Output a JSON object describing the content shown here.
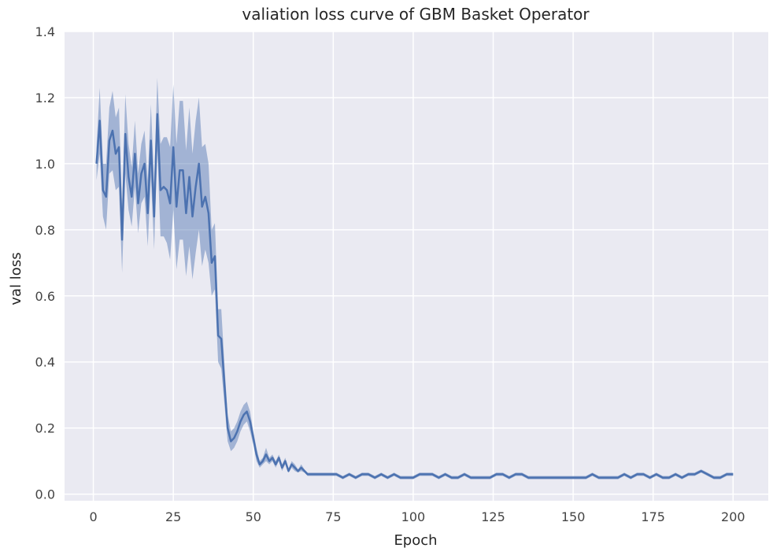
{
  "chart_data": {
    "type": "line",
    "title": "valiation loss curve of GBM Basket Operator",
    "xlabel": "Epoch",
    "ylabel": "val loss",
    "xlim": [
      -9,
      211
    ],
    "ylim": [
      -0.02,
      1.4
    ],
    "x_ticks": [
      0,
      25,
      50,
      75,
      100,
      125,
      150,
      175,
      200
    ],
    "y_ticks": [
      0.0,
      0.2,
      0.4,
      0.6,
      0.8,
      1.0,
      1.2,
      1.4
    ],
    "grid": true,
    "colors": {
      "background": "#eaeaf2",
      "grid": "#ffffff",
      "line": "#4c72b0",
      "band": "#4c72b0"
    },
    "series": [
      {
        "x": [
          1,
          2,
          3,
          4,
          5,
          6,
          7,
          8,
          9,
          10,
          11,
          12,
          13,
          14,
          15,
          16,
          17,
          18,
          19,
          20,
          21,
          22,
          23,
          24,
          25,
          26,
          27,
          28,
          29,
          30,
          31,
          32,
          33,
          34,
          35,
          36,
          37,
          38,
          39,
          40,
          41,
          42,
          43,
          44,
          45,
          46,
          47,
          48,
          49,
          50,
          51,
          52,
          53,
          54,
          55,
          56,
          57,
          58,
          59,
          60,
          61,
          62,
          63,
          64,
          65,
          66,
          67,
          68,
          69,
          70,
          72,
          74,
          76,
          78,
          80,
          82,
          84,
          86,
          88,
          90,
          92,
          94,
          96,
          98,
          100,
          102,
          104,
          106,
          108,
          110,
          112,
          114,
          116,
          118,
          120,
          122,
          124,
          126,
          128,
          130,
          132,
          134,
          136,
          138,
          140,
          142,
          144,
          146,
          148,
          150,
          152,
          154,
          156,
          158,
          160,
          162,
          164,
          166,
          168,
          170,
          172,
          174,
          176,
          178,
          180,
          182,
          184,
          186,
          188,
          190,
          192,
          194,
          196,
          198,
          200
        ],
        "y": [
          1.0,
          1.13,
          0.92,
          0.9,
          1.07,
          1.1,
          1.03,
          1.05,
          0.77,
          1.09,
          0.96,
          0.9,
          1.03,
          0.88,
          0.97,
          1.0,
          0.85,
          1.07,
          0.84,
          1.15,
          0.92,
          0.93,
          0.92,
          0.88,
          1.05,
          0.87,
          0.98,
          0.98,
          0.85,
          0.96,
          0.84,
          0.93,
          1.0,
          0.87,
          0.9,
          0.85,
          0.7,
          0.72,
          0.48,
          0.47,
          0.33,
          0.2,
          0.16,
          0.17,
          0.19,
          0.22,
          0.24,
          0.25,
          0.22,
          0.17,
          0.12,
          0.09,
          0.1,
          0.12,
          0.1,
          0.11,
          0.09,
          0.11,
          0.08,
          0.1,
          0.07,
          0.09,
          0.08,
          0.07,
          0.08,
          0.07,
          0.06,
          0.06,
          0.06,
          0.06,
          0.06,
          0.06,
          0.06,
          0.05,
          0.06,
          0.05,
          0.06,
          0.06,
          0.05,
          0.06,
          0.05,
          0.06,
          0.05,
          0.05,
          0.05,
          0.06,
          0.06,
          0.06,
          0.05,
          0.06,
          0.05,
          0.05,
          0.06,
          0.05,
          0.05,
          0.05,
          0.05,
          0.06,
          0.06,
          0.05,
          0.06,
          0.06,
          0.05,
          0.05,
          0.05,
          0.05,
          0.05,
          0.05,
          0.05,
          0.05,
          0.05,
          0.05,
          0.06,
          0.05,
          0.05,
          0.05,
          0.05,
          0.06,
          0.05,
          0.06,
          0.06,
          0.05,
          0.06,
          0.05,
          0.05,
          0.06,
          0.05,
          0.06,
          0.06,
          0.07,
          0.06,
          0.05,
          0.05,
          0.06,
          0.06
        ],
        "y_lower": [
          0.95,
          1.03,
          0.84,
          0.8,
          0.97,
          0.98,
          0.92,
          0.93,
          0.67,
          0.97,
          0.86,
          0.81,
          0.93,
          0.79,
          0.88,
          0.9,
          0.75,
          0.96,
          0.74,
          1.04,
          0.78,
          0.78,
          0.76,
          0.71,
          0.86,
          0.68,
          0.77,
          0.77,
          0.66,
          0.75,
          0.65,
          0.73,
          0.8,
          0.69,
          0.74,
          0.7,
          0.6,
          0.62,
          0.4,
          0.38,
          0.27,
          0.16,
          0.13,
          0.14,
          0.16,
          0.19,
          0.21,
          0.22,
          0.19,
          0.15,
          0.1,
          0.08,
          0.09,
          0.1,
          0.09,
          0.1,
          0.08,
          0.1,
          0.07,
          0.09,
          0.065,
          0.08,
          0.07,
          0.065,
          0.07,
          0.065,
          0.055,
          0.055,
          0.055,
          0.055,
          0.055,
          0.055,
          0.055,
          0.045,
          0.055,
          0.045,
          0.055,
          0.055,
          0.045,
          0.055,
          0.045,
          0.055,
          0.045,
          0.045,
          0.045,
          0.055,
          0.055,
          0.055,
          0.045,
          0.055,
          0.045,
          0.045,
          0.055,
          0.045,
          0.045,
          0.045,
          0.045,
          0.055,
          0.055,
          0.045,
          0.055,
          0.055,
          0.045,
          0.045,
          0.045,
          0.045,
          0.045,
          0.045,
          0.045,
          0.045,
          0.045,
          0.045,
          0.055,
          0.045,
          0.045,
          0.045,
          0.045,
          0.055,
          0.045,
          0.055,
          0.055,
          0.045,
          0.055,
          0.045,
          0.045,
          0.055,
          0.045,
          0.055,
          0.055,
          0.065,
          0.055,
          0.045,
          0.045,
          0.055,
          0.055
        ],
        "y_upper": [
          1.05,
          1.23,
          1.0,
          1.0,
          1.17,
          1.22,
          1.14,
          1.17,
          0.87,
          1.21,
          1.06,
          0.99,
          1.13,
          0.97,
          1.06,
          1.1,
          0.95,
          1.18,
          0.94,
          1.26,
          1.06,
          1.08,
          1.08,
          1.05,
          1.24,
          1.06,
          1.19,
          1.19,
          1.04,
          1.17,
          1.03,
          1.13,
          1.2,
          1.05,
          1.06,
          1.0,
          0.8,
          0.82,
          0.56,
          0.56,
          0.39,
          0.24,
          0.19,
          0.2,
          0.22,
          0.25,
          0.27,
          0.28,
          0.25,
          0.19,
          0.14,
          0.1,
          0.11,
          0.14,
          0.11,
          0.12,
          0.1,
          0.12,
          0.09,
          0.11,
          0.075,
          0.1,
          0.09,
          0.075,
          0.09,
          0.075,
          0.065,
          0.065,
          0.065,
          0.065,
          0.065,
          0.065,
          0.065,
          0.055,
          0.065,
          0.055,
          0.065,
          0.065,
          0.055,
          0.065,
          0.055,
          0.065,
          0.055,
          0.055,
          0.055,
          0.065,
          0.065,
          0.065,
          0.055,
          0.065,
          0.055,
          0.055,
          0.065,
          0.055,
          0.055,
          0.055,
          0.055,
          0.065,
          0.065,
          0.055,
          0.065,
          0.065,
          0.055,
          0.055,
          0.055,
          0.055,
          0.055,
          0.055,
          0.055,
          0.055,
          0.055,
          0.055,
          0.065,
          0.055,
          0.055,
          0.055,
          0.055,
          0.065,
          0.055,
          0.065,
          0.065,
          0.055,
          0.065,
          0.055,
          0.055,
          0.065,
          0.055,
          0.065,
          0.065,
          0.075,
          0.065,
          0.055,
          0.055,
          0.065,
          0.065
        ]
      }
    ]
  }
}
